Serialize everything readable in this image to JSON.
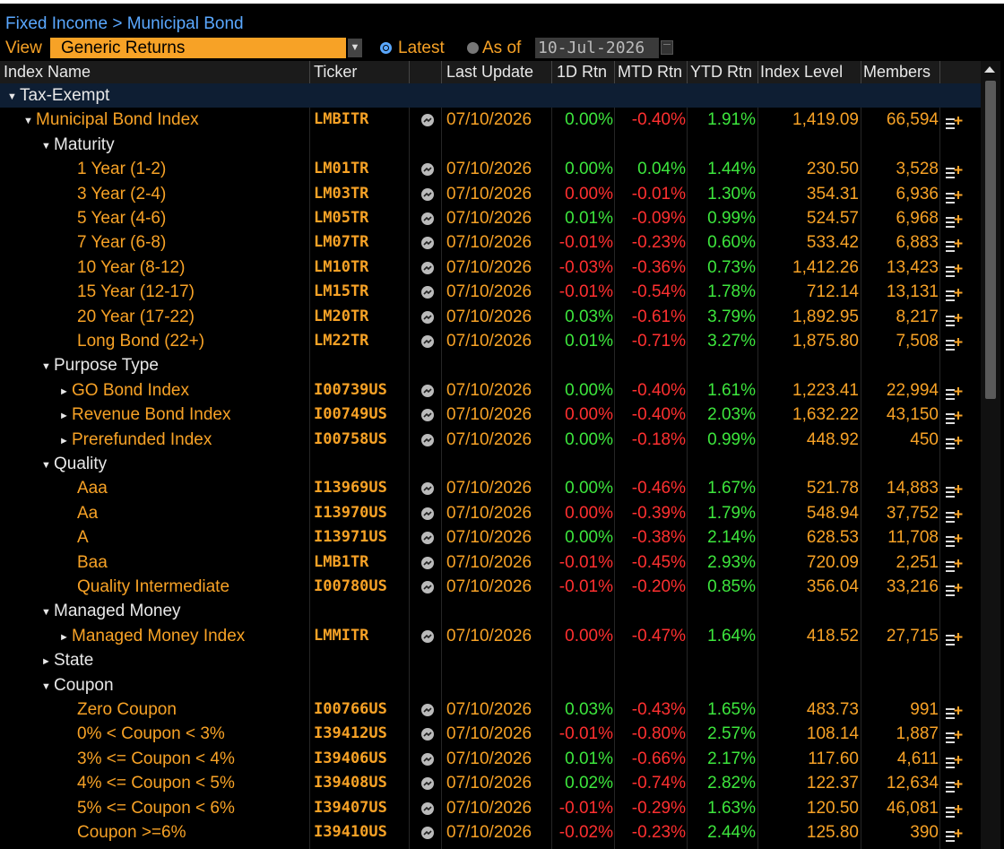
{
  "breadcrumb": "Fixed Income > Municipal Bond",
  "view": {
    "label": "View",
    "selected": "Generic Returns",
    "radio_latest": "Latest",
    "radio_asof": "As of",
    "asof_date": "10-Jul-2026"
  },
  "columns": {
    "name": "Index Name",
    "ticker": "Ticker",
    "last_update": "Last Update",
    "d1": "1D Rtn",
    "mtd": "MTD Rtn",
    "ytd": "YTD Rtn",
    "level": "Index Level",
    "members": "Members"
  },
  "colors": {
    "positive": "#3de63d",
    "negative": "#ff3030",
    "accent": "#f7a226",
    "link": "#5aa8ff"
  },
  "rows": [
    {
      "type": "group",
      "indent": 0,
      "tri": "▼",
      "name": "Tax-Exempt"
    },
    {
      "type": "data",
      "indent": 1,
      "tri": "▼",
      "name": "Municipal Bond Index",
      "ticker": "LMBITR",
      "date": "07/10/2026",
      "d1": "0.00%",
      "d1s": "pos",
      "mtd": "-0.40%",
      "mtds": "neg",
      "ytd": "1.91%",
      "ytds": "pos",
      "level": "1,419.09",
      "members": "66,594"
    },
    {
      "type": "section",
      "indent": 2,
      "tri": "▼",
      "name": "Maturity"
    },
    {
      "type": "data",
      "indent": 4,
      "tri": "",
      "name": "1 Year (1-2)",
      "ticker": "LM01TR",
      "date": "07/10/2026",
      "d1": "0.00%",
      "d1s": "pos",
      "mtd": "0.04%",
      "mtds": "pos",
      "ytd": "1.44%",
      "ytds": "pos",
      "level": "230.50",
      "members": "3,528"
    },
    {
      "type": "data",
      "indent": 4,
      "tri": "",
      "name": "3 Year (2-4)",
      "ticker": "LM03TR",
      "date": "07/10/2026",
      "d1": "0.00%",
      "d1s": "neg",
      "mtd": "-0.01%",
      "mtds": "neg",
      "ytd": "1.30%",
      "ytds": "pos",
      "level": "354.31",
      "members": "6,936"
    },
    {
      "type": "data",
      "indent": 4,
      "tri": "",
      "name": "5 Year (4-6)",
      "ticker": "LM05TR",
      "date": "07/10/2026",
      "d1": "0.01%",
      "d1s": "pos",
      "mtd": "-0.09%",
      "mtds": "neg",
      "ytd": "0.99%",
      "ytds": "pos",
      "level": "524.57",
      "members": "6,968"
    },
    {
      "type": "data",
      "indent": 4,
      "tri": "",
      "name": "7 Year (6-8)",
      "ticker": "LM07TR",
      "date": "07/10/2026",
      "d1": "-0.01%",
      "d1s": "neg",
      "mtd": "-0.23%",
      "mtds": "neg",
      "ytd": "0.60%",
      "ytds": "pos",
      "level": "533.42",
      "members": "6,883"
    },
    {
      "type": "data",
      "indent": 4,
      "tri": "",
      "name": "10 Year (8-12)",
      "ticker": "LM10TR",
      "date": "07/10/2026",
      "d1": "-0.03%",
      "d1s": "neg",
      "mtd": "-0.36%",
      "mtds": "neg",
      "ytd": "0.73%",
      "ytds": "pos",
      "level": "1,412.26",
      "members": "13,423"
    },
    {
      "type": "data",
      "indent": 4,
      "tri": "",
      "name": "15 Year (12-17)",
      "ticker": "LM15TR",
      "date": "07/10/2026",
      "d1": "-0.01%",
      "d1s": "neg",
      "mtd": "-0.54%",
      "mtds": "neg",
      "ytd": "1.78%",
      "ytds": "pos",
      "level": "712.14",
      "members": "13,131"
    },
    {
      "type": "data",
      "indent": 4,
      "tri": "",
      "name": "20 Year (17-22)",
      "ticker": "LM20TR",
      "date": "07/10/2026",
      "d1": "0.03%",
      "d1s": "pos",
      "mtd": "-0.61%",
      "mtds": "neg",
      "ytd": "3.79%",
      "ytds": "pos",
      "level": "1,892.95",
      "members": "8,217"
    },
    {
      "type": "data",
      "indent": 4,
      "tri": "",
      "name": "Long Bond (22+)",
      "ticker": "LM22TR",
      "date": "07/10/2026",
      "d1": "0.01%",
      "d1s": "pos",
      "mtd": "-0.71%",
      "mtds": "neg",
      "ytd": "3.27%",
      "ytds": "pos",
      "level": "1,875.80",
      "members": "7,508"
    },
    {
      "type": "section",
      "indent": 2,
      "tri": "▼",
      "name": "Purpose Type"
    },
    {
      "type": "data",
      "indent": 3,
      "tri": "►",
      "name": "GO Bond Index",
      "ticker": "I00739US",
      "date": "07/10/2026",
      "d1": "0.00%",
      "d1s": "pos",
      "mtd": "-0.40%",
      "mtds": "neg",
      "ytd": "1.61%",
      "ytds": "pos",
      "level": "1,223.41",
      "members": "22,994"
    },
    {
      "type": "data",
      "indent": 3,
      "tri": "►",
      "name": "Revenue Bond Index",
      "ticker": "I00749US",
      "date": "07/10/2026",
      "d1": "0.00%",
      "d1s": "neg",
      "mtd": "-0.40%",
      "mtds": "neg",
      "ytd": "2.03%",
      "ytds": "pos",
      "level": "1,632.22",
      "members": "43,150"
    },
    {
      "type": "data",
      "indent": 3,
      "tri": "►",
      "name": "Prerefunded Index",
      "ticker": "I00758US",
      "date": "07/10/2026",
      "d1": "0.00%",
      "d1s": "pos",
      "mtd": "-0.18%",
      "mtds": "neg",
      "ytd": "0.99%",
      "ytds": "pos",
      "level": "448.92",
      "members": "450"
    },
    {
      "type": "section",
      "indent": 2,
      "tri": "▼",
      "name": "Quality"
    },
    {
      "type": "data",
      "indent": 4,
      "tri": "",
      "name": "Aaa",
      "ticker": "I13969US",
      "date": "07/10/2026",
      "d1": "0.00%",
      "d1s": "pos",
      "mtd": "-0.46%",
      "mtds": "neg",
      "ytd": "1.67%",
      "ytds": "pos",
      "level": "521.78",
      "members": "14,883"
    },
    {
      "type": "data",
      "indent": 4,
      "tri": "",
      "name": "Aa",
      "ticker": "I13970US",
      "date": "07/10/2026",
      "d1": "0.00%",
      "d1s": "neg",
      "mtd": "-0.39%",
      "mtds": "neg",
      "ytd": "1.79%",
      "ytds": "pos",
      "level": "548.94",
      "members": "37,752"
    },
    {
      "type": "data",
      "indent": 4,
      "tri": "",
      "name": "A",
      "ticker": "I13971US",
      "date": "07/10/2026",
      "d1": "0.00%",
      "d1s": "pos",
      "mtd": "-0.38%",
      "mtds": "neg",
      "ytd": "2.14%",
      "ytds": "pos",
      "level": "628.53",
      "members": "11,708"
    },
    {
      "type": "data",
      "indent": 4,
      "tri": "",
      "name": "Baa",
      "ticker": "LMB1TR",
      "date": "07/10/2026",
      "d1": "-0.01%",
      "d1s": "neg",
      "mtd": "-0.45%",
      "mtds": "neg",
      "ytd": "2.93%",
      "ytds": "pos",
      "level": "720.09",
      "members": "2,251"
    },
    {
      "type": "data",
      "indent": 4,
      "tri": "",
      "name": "Quality Intermediate",
      "ticker": "I00780US",
      "date": "07/10/2026",
      "d1": "-0.01%",
      "d1s": "neg",
      "mtd": "-0.20%",
      "mtds": "neg",
      "ytd": "0.85%",
      "ytds": "pos",
      "level": "356.04",
      "members": "33,216"
    },
    {
      "type": "section",
      "indent": 2,
      "tri": "▼",
      "name": "Managed Money"
    },
    {
      "type": "data",
      "indent": 3,
      "tri": "►",
      "name": "Managed Money Index",
      "ticker": "LMMITR",
      "date": "07/10/2026",
      "d1": "0.00%",
      "d1s": "neg",
      "mtd": "-0.47%",
      "mtds": "neg",
      "ytd": "1.64%",
      "ytds": "pos",
      "level": "418.52",
      "members": "27,715"
    },
    {
      "type": "section",
      "indent": 2,
      "tri": "►",
      "name": "State"
    },
    {
      "type": "section",
      "indent": 2,
      "tri": "▼",
      "name": "Coupon"
    },
    {
      "type": "data",
      "indent": 4,
      "tri": "",
      "name": "Zero Coupon",
      "ticker": "I00766US",
      "date": "07/10/2026",
      "d1": "0.03%",
      "d1s": "pos",
      "mtd": "-0.43%",
      "mtds": "neg",
      "ytd": "1.65%",
      "ytds": "pos",
      "level": "483.73",
      "members": "991"
    },
    {
      "type": "data",
      "indent": 4,
      "tri": "",
      "name": "0% < Coupon < 3%",
      "ticker": "I39412US",
      "date": "07/10/2026",
      "d1": "-0.01%",
      "d1s": "neg",
      "mtd": "-0.80%",
      "mtds": "neg",
      "ytd": "2.57%",
      "ytds": "pos",
      "level": "108.14",
      "members": "1,887"
    },
    {
      "type": "data",
      "indent": 4,
      "tri": "",
      "name": "3% <= Coupon < 4%",
      "ticker": "I39406US",
      "date": "07/10/2026",
      "d1": "0.01%",
      "d1s": "pos",
      "mtd": "-0.66%",
      "mtds": "neg",
      "ytd": "2.17%",
      "ytds": "pos",
      "level": "117.60",
      "members": "4,611"
    },
    {
      "type": "data",
      "indent": 4,
      "tri": "",
      "name": "4% <= Coupon < 5%",
      "ticker": "I39408US",
      "date": "07/10/2026",
      "d1": "0.02%",
      "d1s": "pos",
      "mtd": "-0.74%",
      "mtds": "neg",
      "ytd": "2.82%",
      "ytds": "pos",
      "level": "122.37",
      "members": "12,634"
    },
    {
      "type": "data",
      "indent": 4,
      "tri": "",
      "name": "5% <= Coupon < 6%",
      "ticker": "I39407US",
      "date": "07/10/2026",
      "d1": "-0.01%",
      "d1s": "neg",
      "mtd": "-0.29%",
      "mtds": "neg",
      "ytd": "1.63%",
      "ytds": "pos",
      "level": "120.50",
      "members": "46,081"
    },
    {
      "type": "data",
      "indent": 4,
      "tri": "",
      "name": "Coupon >=6%",
      "ticker": "I39410US",
      "date": "07/10/2026",
      "d1": "-0.02%",
      "d1s": "neg",
      "mtd": "-0.23%",
      "mtds": "neg",
      "ytd": "2.44%",
      "ytds": "pos",
      "level": "125.80",
      "members": "390"
    }
  ]
}
